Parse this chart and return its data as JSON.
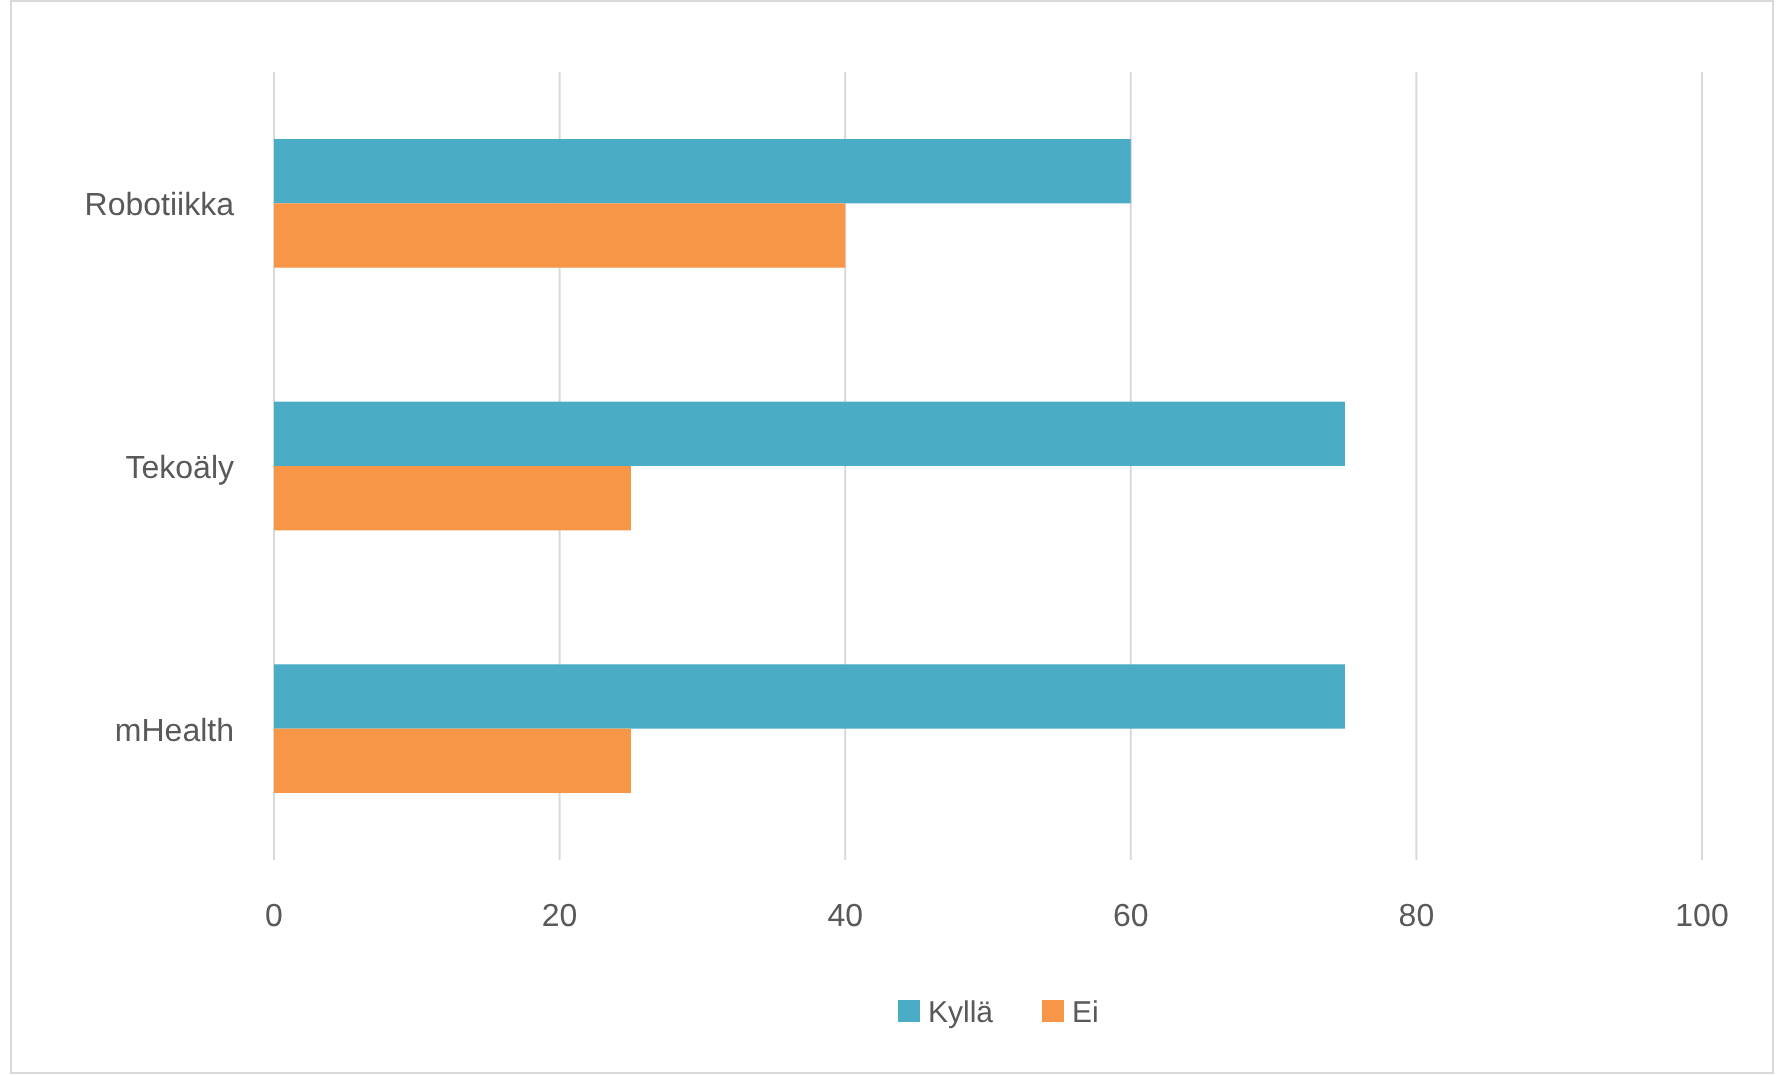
{
  "chart_data": {
    "type": "bar",
    "orientation": "horizontal",
    "categories": [
      "Robotiikka",
      "Tekoäly",
      "mHealth"
    ],
    "series": [
      {
        "name": "Kyllä",
        "color": "#4bacc6",
        "values": [
          60,
          75,
          75
        ]
      },
      {
        "name": "Ei",
        "color": "#f79646",
        "values": [
          40,
          25,
          25
        ]
      }
    ],
    "xlim": [
      0,
      100
    ],
    "xticks": [
      0,
      20,
      40,
      60,
      80,
      100
    ],
    "grid": "x",
    "legend": "bottom"
  }
}
